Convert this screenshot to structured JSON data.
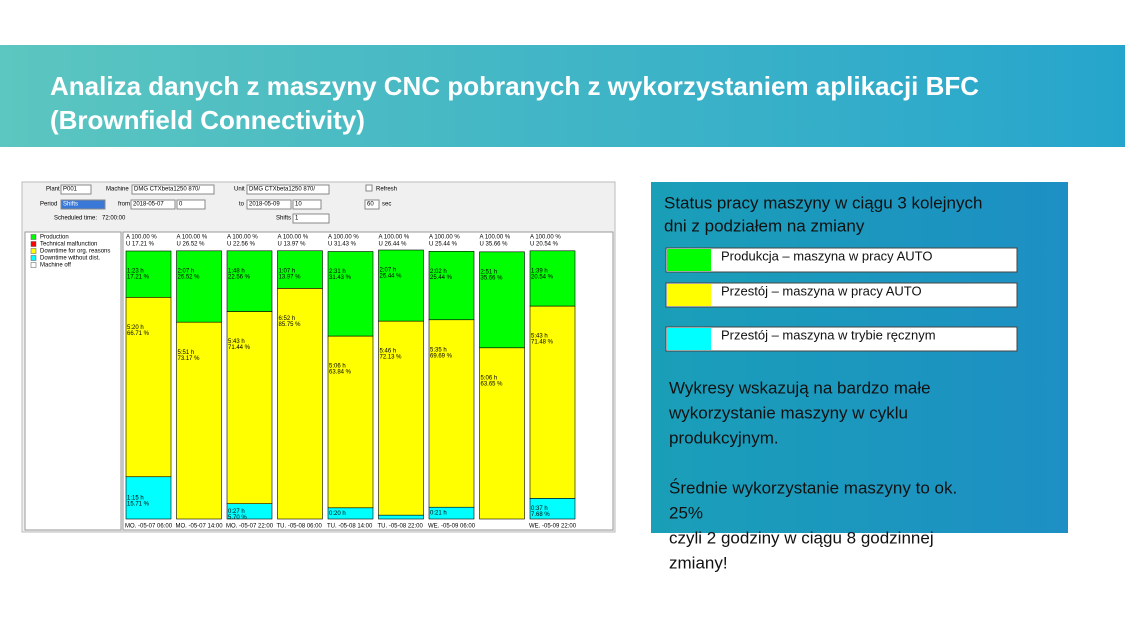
{
  "slide": {
    "title_lines": [
      "Analiza danych z maszyny CNC pobranych z wykorzystaniem aplikacji BFC",
      "(Brownfield Connectivity)"
    ],
    "panel_heading_lines": [
      "Status pracy  maszyny w ciągu 3 kolejnych",
      "dni z podziałem na zmiany"
    ],
    "key": [
      {
        "label": "Produkcja – maszyna w pracy AUTO",
        "color": "#00ff00"
      },
      {
        "label": "Przestój – maszyna w pracy AUTO",
        "color": "#ffff00"
      },
      {
        "label": "Przestój – maszyna w trybie ręcznym",
        "color": "#00ffff"
      }
    ],
    "notes_lines": [
      "Wykresy wskazują na bardzo małe",
      "wykorzystanie maszyny w cyklu",
      "produkcyjnym.",
      "",
      "Średnie wykorzystanie maszyny  to ok.",
      "25%",
      "czyli 2 godziny w ciągu 8 godzinnej",
      "zmiany!"
    ]
  },
  "controls": {
    "plant_label": "Plant",
    "plant": "P001",
    "machine_label": "Machine",
    "machine": "DMG CTXbeta1250 870/",
    "unit_label": "Unit",
    "unit": "DMG CTXbeta1250 870/",
    "refresh_label": "Refresh",
    "period_label": "Period",
    "period": "Shifts",
    "from_label": "from",
    "from": "2018-05-07",
    "from_n": "0",
    "to_label": "to",
    "to": "2018-05-09",
    "to_n": "10",
    "interval": "60",
    "interval_unit": "sec",
    "scheduled_label": "Scheduled time:",
    "scheduled": "72:00:00",
    "shifts_label": "Shifts",
    "shifts": "1"
  },
  "chart_data": {
    "type": "stacked_bar",
    "ylim": [
      0,
      100
    ],
    "categories": [
      "MO. -05-07 06:00",
      "MO. -05-07 14:00",
      "MO. -05-07 22:00",
      "TU. -05-08 06:00",
      "TU. -05-08 14:00",
      "TU. -05-08 22:00",
      "WE. -05-09 06:00",
      null,
      "WE. -05-09 22:00"
    ],
    "header_labels": [
      [
        "A 100.00 %",
        "U 17.21 %"
      ],
      [
        "A 100.00 %",
        "U 26.52 %"
      ],
      [
        "A 100.00 %",
        "U 22.56 %"
      ],
      [
        "A 100.00 %",
        "U 13.97 %"
      ],
      [
        "A 100.00 %",
        "U 31.43 %"
      ],
      [
        "A 100.00 %",
        "U 26.44 %"
      ],
      [
        "A 100.00 %",
        "U 25.44 %"
      ],
      [
        "A 100.00 %",
        "U 35.66 %"
      ],
      [
        "A 100.00 %",
        "U 20.54 %"
      ]
    ],
    "series": [
      {
        "name": "Production",
        "color": "#00ff00",
        "values": [
          17.21,
          26.52,
          22.56,
          13.97,
          31.43,
          26.44,
          25.44,
          35.66,
          20.54
        ],
        "value_labels": [
          "17.21 %",
          "26.52 %",
          "22.56 %",
          "13.97 %",
          "31.43 %",
          "26.44 %",
          "25.44 %",
          "35.66 %",
          "20.54 %"
        ],
        "hour_labels": [
          "1:23 h",
          "2:07 h",
          "1:48 h",
          "1:07 h",
          "2:31 h",
          "2:07 h",
          "2:02 h",
          "2:51 h",
          "1:39 h"
        ]
      },
      {
        "name": "Technical malfunction",
        "color": "#ff0000",
        "values": [
          null,
          null,
          null,
          null,
          null,
          null,
          null,
          null,
          null
        ]
      },
      {
        "name": "Downtime for org. reasons",
        "color": "#ffff00",
        "values": [
          66.71,
          73.17,
          71.44,
          85.75,
          63.84,
          72.13,
          69.69,
          63.65,
          71.48
        ],
        "value_labels": [
          "66.71 %",
          "73.17 %",
          "71.44 %",
          "85.75 %",
          "63.84 %",
          "72.13 %",
          "69.69 %",
          "63.65 %",
          "71.48 %"
        ],
        "hour_labels": [
          "5:20 h",
          "5:51 h",
          "5:43 h",
          "6:52 h",
          "5:06 h",
          "5:46 h",
          "5:35 h",
          "5:06 h",
          "5:43 h"
        ]
      },
      {
        "name": "Downtime without dist.",
        "color": "#00ffff",
        "values": [
          15.71,
          null,
          5.7,
          null,
          4.17,
          1.43,
          4.38,
          null,
          7.68
        ],
        "value_labels": [
          "15.71 %",
          null,
          "5.70 %",
          null,
          null,
          null,
          null,
          null,
          "7.68 %"
        ],
        "hour_labels": [
          "1:15 h",
          null,
          "0:27 h",
          null,
          "0:20 h",
          null,
          "0:21 h",
          null,
          "0:37 h"
        ]
      },
      {
        "name": "Machine off",
        "color": "#ffffff",
        "values": [
          null,
          null,
          null,
          null,
          null,
          null,
          null,
          null,
          null
        ]
      }
    ]
  }
}
